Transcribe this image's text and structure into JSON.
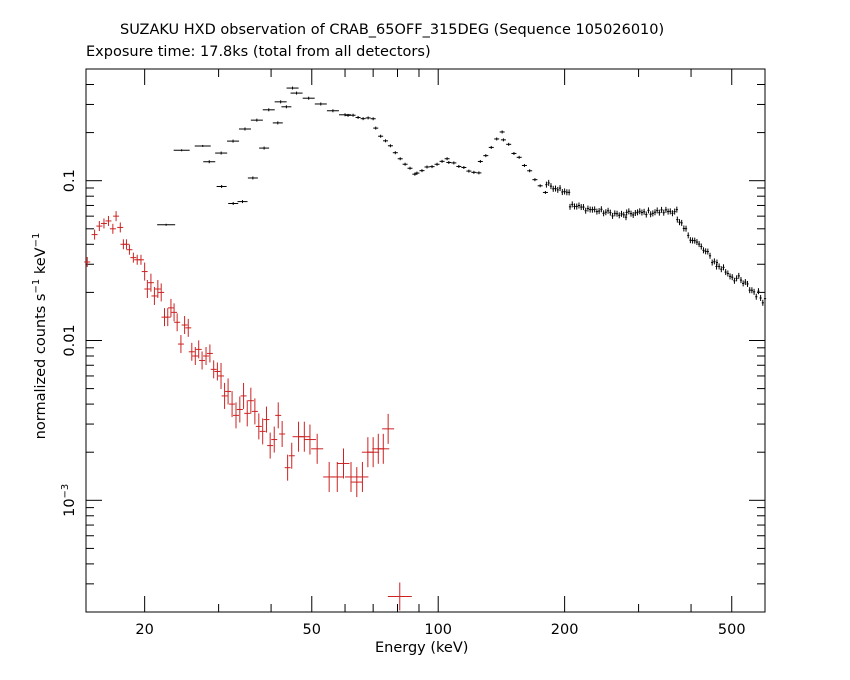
{
  "chart_data": {
    "type": "scatter",
    "title": "SUZAKU HXD observation of CRAB_65OFF_315DEG (Sequence 105026010)",
    "subtitle": "Exposure time: 17.8ks (total from all detectors)",
    "xlabel": "Energy (keV)",
    "ylabel": {
      "prefix": "normalized counts s",
      "sup1": "−1",
      "middle": " keV",
      "sup2": "−1"
    },
    "x_scale": "log",
    "y_scale": "log",
    "xlim": [
      14.5,
      600
    ],
    "ylim": [
      0.0002,
      0.5
    ],
    "grid": false,
    "xticks": [
      {
        "value": 20,
        "label": "20"
      },
      {
        "value": 50,
        "label": "50"
      },
      {
        "value": 100,
        "label": "100"
      },
      {
        "value": 200,
        "label": "200"
      },
      {
        "value": 500,
        "label": "500"
      }
    ],
    "yticks": [
      {
        "value": 0.1,
        "label": "0.1"
      },
      {
        "value": 0.01,
        "label": "0.01"
      },
      {
        "value": 0.001,
        "label": "10",
        "sup": "−3"
      }
    ],
    "series": [
      {
        "color": "#000000",
        "segments": [
          {
            "x": [
              22.5,
              44
            ],
            "y": [
              0.053,
              0.052
            ],
            "scatter": 0
          },
          {
            "x": [
              24.5,
              27.5
            ],
            "y": [
              0.155,
              0.165
            ],
            "scatter": 0
          },
          {
            "x": [
              28.5,
              45
            ],
            "y": [
              0.13,
              0.37
            ],
            "scatter": 0.03
          },
          {
            "x": [
              46,
              60
            ],
            "y": [
              0.35,
              0.255
            ],
            "scatter": 0.02
          },
          {
            "x": [
              61,
              70
            ],
            "y": [
              0.26,
              0.24
            ],
            "scatter": 0.02
          },
          {
            "x": [
              71,
              88
            ],
            "y": [
              0.21,
              0.108
            ],
            "scatter": 0.02
          },
          {
            "x": [
              89,
              105
            ],
            "y": [
              0.112,
              0.138
            ],
            "scatter": 0.02
          },
          {
            "x": [
              106,
              125
            ],
            "y": [
              0.13,
              0.11
            ],
            "scatter": 0.02
          },
          {
            "x": [
              126,
              142
            ],
            "y": [
              0.13,
              0.2
            ],
            "scatter": 0.02
          },
          {
            "x": [
              143,
              180
            ],
            "y": [
              0.185,
              0.085
            ],
            "scatter": 0.03
          },
          {
            "x": [
              181,
              205
            ],
            "y": [
              0.095,
              0.085
            ],
            "scatter": 0.03
          },
          {
            "x": [
              206,
              280
            ],
            "y": [
              0.07,
              0.06
            ],
            "scatter": 0.03
          },
          {
            "x": [
              281,
              370
            ],
            "y": [
              0.062,
              0.065
            ],
            "scatter": 0.03
          },
          {
            "x": [
              371,
              460
            ],
            "y": [
              0.055,
              0.03
            ],
            "scatter": 0.05
          },
          {
            "x": [
              461,
              600
            ],
            "y": [
              0.03,
              0.018
            ],
            "scatter": 0.06
          }
        ]
      },
      {
        "color": "#cc2222",
        "points": [
          {
            "x": 14.6,
            "y": 0.031
          },
          {
            "x": 15.2,
            "y": 0.046
          },
          {
            "x": 15.6,
            "y": 0.052
          },
          {
            "x": 16.0,
            "y": 0.054
          },
          {
            "x": 16.4,
            "y": 0.056
          },
          {
            "x": 16.8,
            "y": 0.05
          },
          {
            "x": 17.1,
            "y": 0.06
          },
          {
            "x": 17.5,
            "y": 0.051
          },
          {
            "x": 17.8,
            "y": 0.04
          },
          {
            "x": 18.1,
            "y": 0.04
          },
          {
            "x": 18.4,
            "y": 0.037
          },
          {
            "x": 18.8,
            "y": 0.033
          },
          {
            "x": 19.2,
            "y": 0.032
          },
          {
            "x": 19.6,
            "y": 0.032
          },
          {
            "x": 20.0,
            "y": 0.027
          },
          {
            "x": 20.3,
            "y": 0.021
          },
          {
            "x": 20.7,
            "y": 0.023
          },
          {
            "x": 21.1,
            "y": 0.019
          },
          {
            "x": 21.5,
            "y": 0.021
          },
          {
            "x": 21.9,
            "y": 0.02
          },
          {
            "x": 22.3,
            "y": 0.014
          },
          {
            "x": 22.7,
            "y": 0.014
          },
          {
            "x": 23.1,
            "y": 0.016
          },
          {
            "x": 23.5,
            "y": 0.015
          },
          {
            "x": 23.9,
            "y": 0.013
          },
          {
            "x": 24.4,
            "y": 0.0095
          },
          {
            "x": 24.9,
            "y": 0.0125
          },
          {
            "x": 25.4,
            "y": 0.012
          },
          {
            "x": 25.9,
            "y": 0.0085
          },
          {
            "x": 26.4,
            "y": 0.008
          },
          {
            "x": 26.9,
            "y": 0.0088
          },
          {
            "x": 27.4,
            "y": 0.0075
          },
          {
            "x": 28.0,
            "y": 0.008
          },
          {
            "x": 28.6,
            "y": 0.0083
          },
          {
            "x": 29.2,
            "y": 0.0066
          },
          {
            "x": 29.8,
            "y": 0.0064
          },
          {
            "x": 30.4,
            "y": 0.006
          },
          {
            "x": 31.0,
            "y": 0.0045
          },
          {
            "x": 31.6,
            "y": 0.0048
          },
          {
            "x": 32.3,
            "y": 0.004
          },
          {
            "x": 33.0,
            "y": 0.0034
          },
          {
            "x": 33.7,
            "y": 0.0037
          },
          {
            "x": 34.4,
            "y": 0.0045
          },
          {
            "x": 35.1,
            "y": 0.0035
          },
          {
            "x": 35.8,
            "y": 0.0042
          },
          {
            "x": 36.6,
            "y": 0.0036
          },
          {
            "x": 37.4,
            "y": 0.0029
          },
          {
            "x": 38.2,
            "y": 0.0027
          },
          {
            "x": 39.0,
            "y": 0.0032
          },
          {
            "x": 39.8,
            "y": 0.0022
          },
          {
            "x": 40.7,
            "y": 0.0024
          },
          {
            "x": 41.6,
            "y": 0.0034
          },
          {
            "x": 42.5,
            "y": 0.0026
          },
          {
            "x": 43.8,
            "y": 0.0016
          },
          {
            "x": 44.8,
            "y": 0.0019
          },
          {
            "x": 46.5,
            "y": 0.0025
          },
          {
            "x": 48.0,
            "y": 0.0025
          },
          {
            "x": 49.5,
            "y": 0.0024
          },
          {
            "x": 51.5,
            "y": 0.0021
          },
          {
            "x": 55.0,
            "y": 0.0014
          },
          {
            "x": 57.5,
            "y": 0.0014
          },
          {
            "x": 59.5,
            "y": 0.0017
          },
          {
            "x": 62.0,
            "y": 0.0014
          },
          {
            "x": 64.0,
            "y": 0.0013
          },
          {
            "x": 66.0,
            "y": 0.0014
          },
          {
            "x": 68.0,
            "y": 0.002
          },
          {
            "x": 70.0,
            "y": 0.002
          },
          {
            "x": 72.0,
            "y": 0.0021
          },
          {
            "x": 74.0,
            "y": 0.0021
          },
          {
            "x": 76.0,
            "y": 0.0028
          },
          {
            "x": 81.0,
            "y": 0.00025
          }
        ]
      }
    ]
  }
}
